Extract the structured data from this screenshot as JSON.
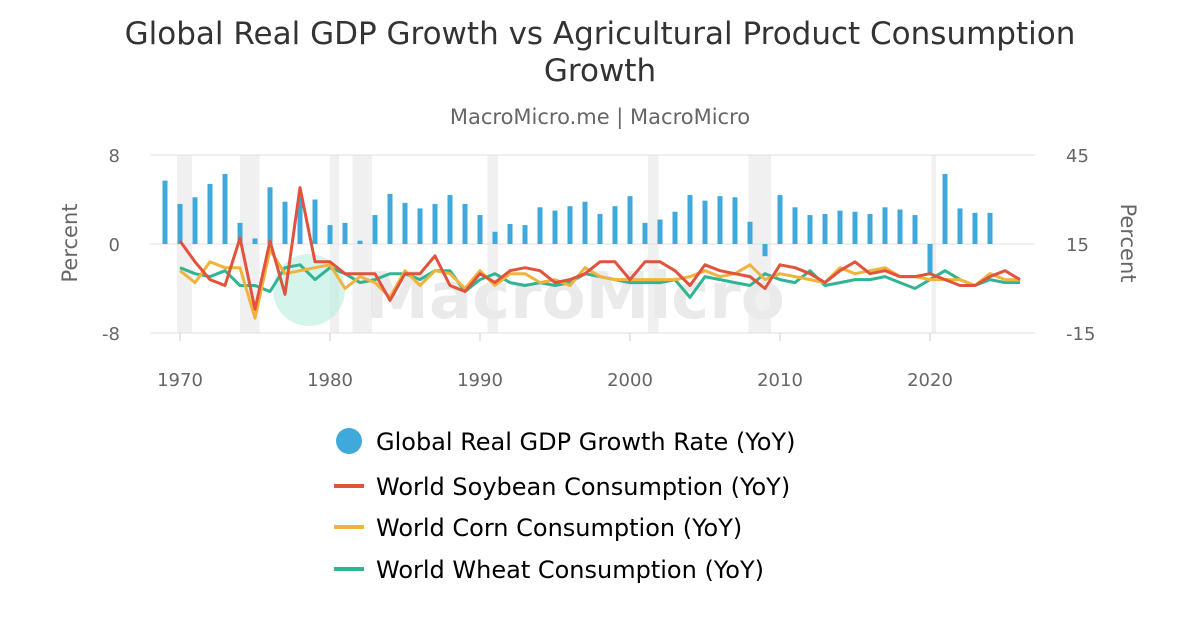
{
  "chart_data": {
    "type": "bar+line",
    "title": "Global Real GDP Growth vs Agricultural Product Consumption Growth",
    "subtitle": "MacroMicro.me | MacroMicro",
    "watermark": "MacroMicro",
    "y_left": {
      "label": "Percent",
      "ylim": [
        -8,
        8
      ],
      "ticks": [
        "8",
        "0",
        "-8"
      ]
    },
    "y_right": {
      "label": "Percent",
      "ylim": [
        -15,
        45
      ],
      "ticks": [
        "45",
        "15",
        "-15"
      ]
    },
    "x_axis": {
      "xlim": [
        1968,
        2027
      ],
      "ticks": [
        "1970",
        "1980",
        "1990",
        "2000",
        "2010",
        "2020"
      ]
    },
    "recession_shading": [
      [
        1969.8,
        1970.8
      ],
      [
        1974,
        1975.3
      ],
      [
        1980,
        1980.6
      ],
      [
        1981.5,
        1982.8
      ],
      [
        1990.5,
        1991.2
      ],
      [
        2001.2,
        2001.9
      ],
      [
        2007.9,
        2009.4
      ],
      [
        2020.1,
        2020.4
      ]
    ],
    "series": [
      {
        "name": "Global Real GDP Growth Rate (YoY)",
        "type": "bar",
        "axis": "left",
        "color": "#3fa9dc",
        "x": [
          1969,
          1970,
          1971,
          1972,
          1973,
          1974,
          1975,
          1976,
          1977,
          1978,
          1979,
          1980,
          1981,
          1982,
          1983,
          1984,
          1985,
          1986,
          1987,
          1988,
          1989,
          1990,
          1991,
          1992,
          1993,
          1994,
          1995,
          1996,
          1997,
          1998,
          1999,
          2000,
          2001,
          2002,
          2003,
          2004,
          2005,
          2006,
          2007,
          2008,
          2009,
          2010,
          2011,
          2012,
          2013,
          2014,
          2015,
          2016,
          2017,
          2018,
          2019,
          2020,
          2021,
          2022,
          2023,
          2024
        ],
        "values": [
          5.7,
          3.6,
          4.2,
          5.4,
          6.3,
          1.9,
          0.5,
          5.1,
          3.8,
          4.2,
          4.0,
          1.7,
          1.9,
          0.3,
          2.6,
          4.5,
          3.7,
          3.2,
          3.6,
          4.4,
          3.6,
          2.6,
          1.1,
          1.8,
          1.7,
          3.3,
          3.0,
          3.4,
          3.8,
          2.7,
          3.4,
          4.3,
          1.9,
          2.2,
          2.9,
          4.4,
          3.9,
          4.3,
          4.2,
          2.0,
          -1.1,
          4.4,
          3.3,
          2.6,
          2.7,
          3.0,
          2.9,
          2.7,
          3.3,
          3.1,
          2.6,
          -2.8,
          6.3,
          3.2,
          2.8,
          2.8
        ]
      },
      {
        "name": "World Soybean Consumption (YoY)",
        "type": "line",
        "axis": "right",
        "color": "#e0533d",
        "x": [
          1970,
          1971,
          1972,
          1973,
          1974,
          1975,
          1976,
          1977,
          1978,
          1979,
          1980,
          1981,
          1982,
          1983,
          1984,
          1985,
          1986,
          1987,
          1988,
          1989,
          1990,
          1991,
          1992,
          1993,
          1994,
          1995,
          1996,
          1997,
          1998,
          1999,
          2000,
          2001,
          2002,
          2003,
          2004,
          2005,
          2006,
          2007,
          2008,
          2009,
          2010,
          2011,
          2012,
          2013,
          2014,
          2015,
          2016,
          2017,
          2018,
          2019,
          2020,
          2021,
          2022,
          2023,
          2024,
          2025,
          2026
        ],
        "values": [
          16,
          9,
          3,
          1,
          17,
          -7,
          16,
          -2,
          34,
          9,
          9,
          5,
          5,
          5,
          -4,
          5,
          5,
          11,
          1,
          -1,
          5,
          2,
          6,
          7,
          6,
          2,
          3,
          5,
          9,
          9,
          3,
          9,
          9,
          6,
          1,
          8,
          6,
          5,
          4,
          0,
          8,
          7,
          5,
          2,
          6,
          9,
          5,
          6,
          4,
          4,
          5,
          3,
          1,
          1,
          4,
          6,
          3
        ]
      },
      {
        "name": "World Corn Consumption (YoY)",
        "type": "line",
        "axis": "right",
        "color": "#f2b33d",
        "x": [
          1970,
          1971,
          1972,
          1973,
          1974,
          1975,
          1976,
          1977,
          1978,
          1979,
          1980,
          1981,
          1982,
          1983,
          1984,
          1985,
          1986,
          1987,
          1988,
          1989,
          1990,
          1991,
          1992,
          1993,
          1994,
          1995,
          1996,
          1997,
          1998,
          1999,
          2000,
          2001,
          2002,
          2003,
          2004,
          2005,
          2006,
          2007,
          2008,
          2009,
          2010,
          2011,
          2012,
          2013,
          2014,
          2015,
          2016,
          2017,
          2018,
          2019,
          2020,
          2021,
          2022,
          2023,
          2024,
          2025,
          2026
        ],
        "values": [
          6,
          2,
          9,
          7,
          7,
          -10,
          13,
          5,
          6,
          7,
          8,
          0,
          4,
          2,
          -3,
          6,
          1,
          6,
          5,
          0,
          6,
          1,
          5,
          5,
          2,
          3,
          1,
          7,
          4,
          3,
          3,
          3,
          3,
          3,
          4,
          6,
          4,
          5,
          8,
          3,
          5,
          4,
          3,
          2,
          7,
          5,
          6,
          7,
          4,
          4,
          3,
          3,
          3,
          1,
          5,
          3,
          3
        ]
      },
      {
        "name": "World Wheat Consumption (YoY)",
        "type": "line",
        "axis": "right",
        "color": "#2fb593",
        "x": [
          1970,
          1971,
          1972,
          1973,
          1974,
          1975,
          1976,
          1977,
          1978,
          1979,
          1980,
          1981,
          1982,
          1983,
          1984,
          1985,
          1986,
          1987,
          1988,
          1989,
          1990,
          1991,
          1992,
          1993,
          1994,
          1995,
          1996,
          1997,
          1998,
          1999,
          2000,
          2001,
          2002,
          2003,
          2004,
          2005,
          2006,
          2007,
          2008,
          2009,
          2010,
          2011,
          2012,
          2013,
          2014,
          2015,
          2016,
          2017,
          2018,
          2019,
          2020,
          2021,
          2022,
          2023,
          2024,
          2025,
          2026
        ],
        "values": [
          7,
          5,
          4,
          6,
          1,
          1,
          -1,
          7,
          8,
          3,
          7,
          5,
          2,
          3,
          5,
          5,
          3,
          6,
          6,
          -1,
          3,
          5,
          2,
          1,
          2,
          1,
          2,
          5,
          4,
          3,
          2,
          2,
          2,
          3,
          -3,
          4,
          3,
          2,
          1,
          5,
          3,
          2,
          6,
          1,
          2,
          3,
          3,
          4,
          2,
          0,
          3,
          6,
          3,
          1,
          3,
          2,
          2
        ]
      }
    ]
  }
}
